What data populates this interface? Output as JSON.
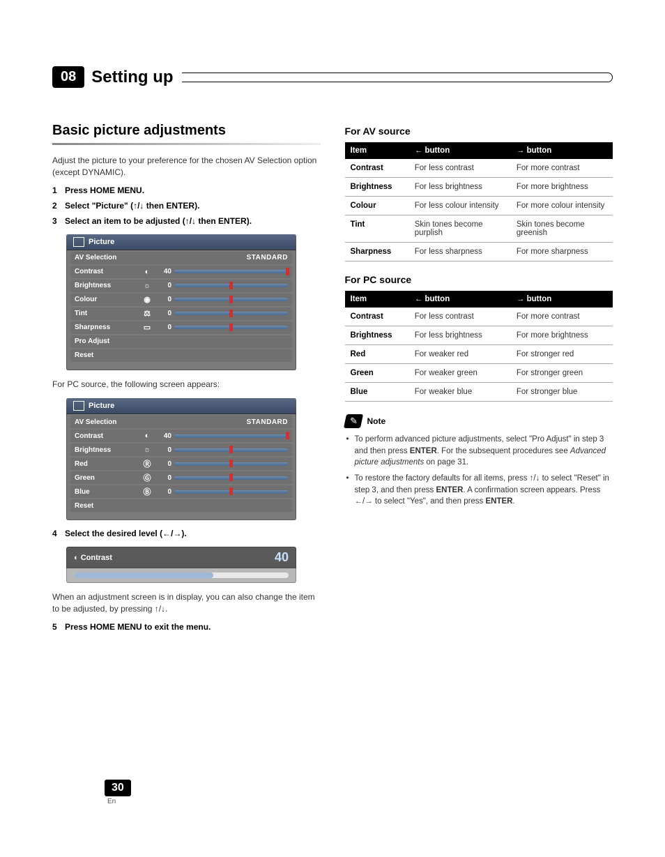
{
  "chapter": {
    "num": "08",
    "title": "Setting up"
  },
  "left": {
    "h2": "Basic picture adjustments",
    "intro": "Adjust the picture to your preference for the chosen AV Selection option (except DYNAMIC).",
    "steps": [
      "Press HOME MENU.",
      "Select \"Picture\" (↑/↓ then ENTER).",
      "Select an item to be adjusted (↑/↓ then ENTER)."
    ],
    "menu1": {
      "title": "Picture",
      "rows": [
        {
          "label": "AV Selection",
          "type": "text",
          "value": "STANDARD"
        },
        {
          "label": "Contrast",
          "type": "bar",
          "icon": "◐",
          "val": "40",
          "notch": 100,
          "full": true
        },
        {
          "label": "Brightness",
          "type": "bar",
          "icon": "☼",
          "val": "0",
          "notch": 50
        },
        {
          "label": "Colour",
          "type": "bar",
          "icon": "◉",
          "val": "0",
          "notch": 50
        },
        {
          "label": "Tint",
          "type": "bar",
          "icon": "⚖",
          "val": "0",
          "notch": 50
        },
        {
          "label": "Sharpness",
          "type": "bar",
          "icon": "▭",
          "val": "0",
          "notch": 50
        },
        {
          "label": "Pro Adjust",
          "type": "plain"
        },
        {
          "label": "Reset",
          "type": "plain"
        }
      ]
    },
    "pc_caption": "For PC source, the following screen appears:",
    "menu2": {
      "title": "Picture",
      "rows": [
        {
          "label": "AV Selection",
          "type": "text",
          "value": "STANDARD"
        },
        {
          "label": "Contrast",
          "type": "bar",
          "icon": "◐",
          "val": "40",
          "notch": 100,
          "full": true
        },
        {
          "label": "Brightness",
          "type": "bar",
          "icon": "☼",
          "val": "0",
          "notch": 50
        },
        {
          "label": "Red",
          "type": "bar",
          "icon": "Ⓡ",
          "val": "0",
          "notch": 50
        },
        {
          "label": "Green",
          "type": "bar",
          "icon": "Ⓖ",
          "val": "0",
          "notch": 50
        },
        {
          "label": "Blue",
          "type": "bar",
          "icon": "Ⓑ",
          "val": "0",
          "notch": 50
        },
        {
          "label": "Reset",
          "type": "plain"
        }
      ]
    },
    "step4": "Select the desired level (←/→).",
    "adjust": {
      "label": "Contrast",
      "value": "40"
    },
    "after_adjust": "When an adjustment screen is in display, you can also change the item to be adjusted, by pressing ↑/↓.",
    "step5": "Press HOME MENU to exit the menu."
  },
  "right": {
    "av_head": "For AV source",
    "av_table": {
      "cols": [
        "Item",
        "← button",
        "→ button"
      ],
      "rows": [
        [
          "Contrast",
          "For less contrast",
          "For more contrast"
        ],
        [
          "Brightness",
          "For less brightness",
          "For more brightness"
        ],
        [
          "Colour",
          "For less colour intensity",
          "For more colour intensity"
        ],
        [
          "Tint",
          "Skin tones become purplish",
          "Skin tones become greenish"
        ],
        [
          "Sharpness",
          "For less sharpness",
          "For more sharpness"
        ]
      ]
    },
    "pc_head": "For PC source",
    "pc_table": {
      "cols": [
        "Item",
        "← button",
        "→ button"
      ],
      "rows": [
        [
          "Contrast",
          "For less contrast",
          "For more contrast"
        ],
        [
          "Brightness",
          "For less brightness",
          "For more brightness"
        ],
        [
          "Red",
          "For weaker red",
          "For stronger red"
        ],
        [
          "Green",
          "For weaker green",
          "For stronger green"
        ],
        [
          "Blue",
          "For weaker blue",
          "For stronger blue"
        ]
      ]
    },
    "note_label": "Note",
    "notes": [
      {
        "pre": "To perform advanced picture adjustments, select \"Pro Adjust\" in step 3 and then press ",
        "b1": "ENTER",
        "mid": ". For the subsequent procedures see ",
        "i": "Advanced picture adjustments",
        "post": " on page 31."
      },
      {
        "pre": "To restore the factory defaults for all items, press ↑/↓ to select \"Reset\" in step 3, and then press ",
        "b1": "ENTER",
        "mid": ". A confirmation screen appears. Press ←/→ to select \"Yes\", and then press ",
        "b2": "ENTER",
        "post": "."
      }
    ]
  },
  "page": {
    "num": "30",
    "lang": "En"
  },
  "colors": {
    "panel_bg": "#7a7a7a",
    "row_bg": "#707070",
    "bar": "#5a7aa0",
    "notch": "#d03030",
    "header_black": "#000000",
    "text_gray": "#333333"
  }
}
